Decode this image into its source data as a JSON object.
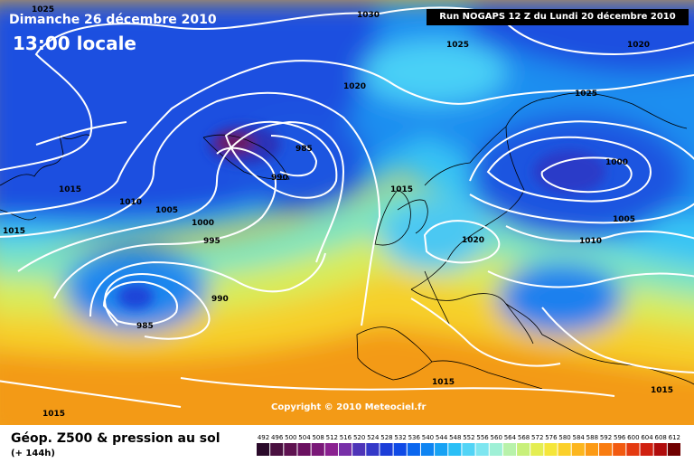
{
  "header": {
    "date": "Dimanche 26 décembre 2010",
    "time": "13:00 locale",
    "run": "Run NOGAPS 12 Z du Lundi 20 décembre 2010"
  },
  "copyright": "Copyright © 2010 Meteociel.fr",
  "legend": {
    "title": "Géop. Z500 & pression au sol",
    "subtitle": "(+ 144h)",
    "scale": [
      "492",
      "496",
      "500",
      "504",
      "508",
      "512",
      "516",
      "520",
      "524",
      "528",
      "532",
      "536",
      "540",
      "544",
      "548",
      "552",
      "556",
      "560",
      "564",
      "568",
      "572",
      "576",
      "580",
      "584",
      "588",
      "592",
      "596",
      "600",
      "604",
      "608",
      "612"
    ],
    "colors": [
      "#2a0a2a",
      "#4a1040",
      "#5e1250",
      "#6a1060",
      "#7a1878",
      "#8a2090",
      "#7830a8",
      "#4e34b8",
      "#3438c8",
      "#1c3ed8",
      "#0f4ae6",
      "#0a66ee",
      "#0e84f2",
      "#17a2f4",
      "#2abff6",
      "#52d4f6",
      "#7ee6f0",
      "#9ff0d6",
      "#b8f2aa",
      "#c8f07a",
      "#e4ee52",
      "#f5e63a",
      "#fbd02a",
      "#fcb61e",
      "#fc9a14",
      "#f97c10",
      "#f25a10",
      "#e43a10",
      "#d02010",
      "#b00c0c",
      "#700000"
    ]
  },
  "isobars": [
    "1025",
    "1030",
    "1025",
    "1020",
    "1020",
    "985",
    "990",
    "1015",
    "1015",
    "1010",
    "1005",
    "1000",
    "995",
    "990",
    "985",
    "1015",
    "1020",
    "1025",
    "1000",
    "1005",
    "1010",
    "1015",
    "1015",
    "1015"
  ]
}
